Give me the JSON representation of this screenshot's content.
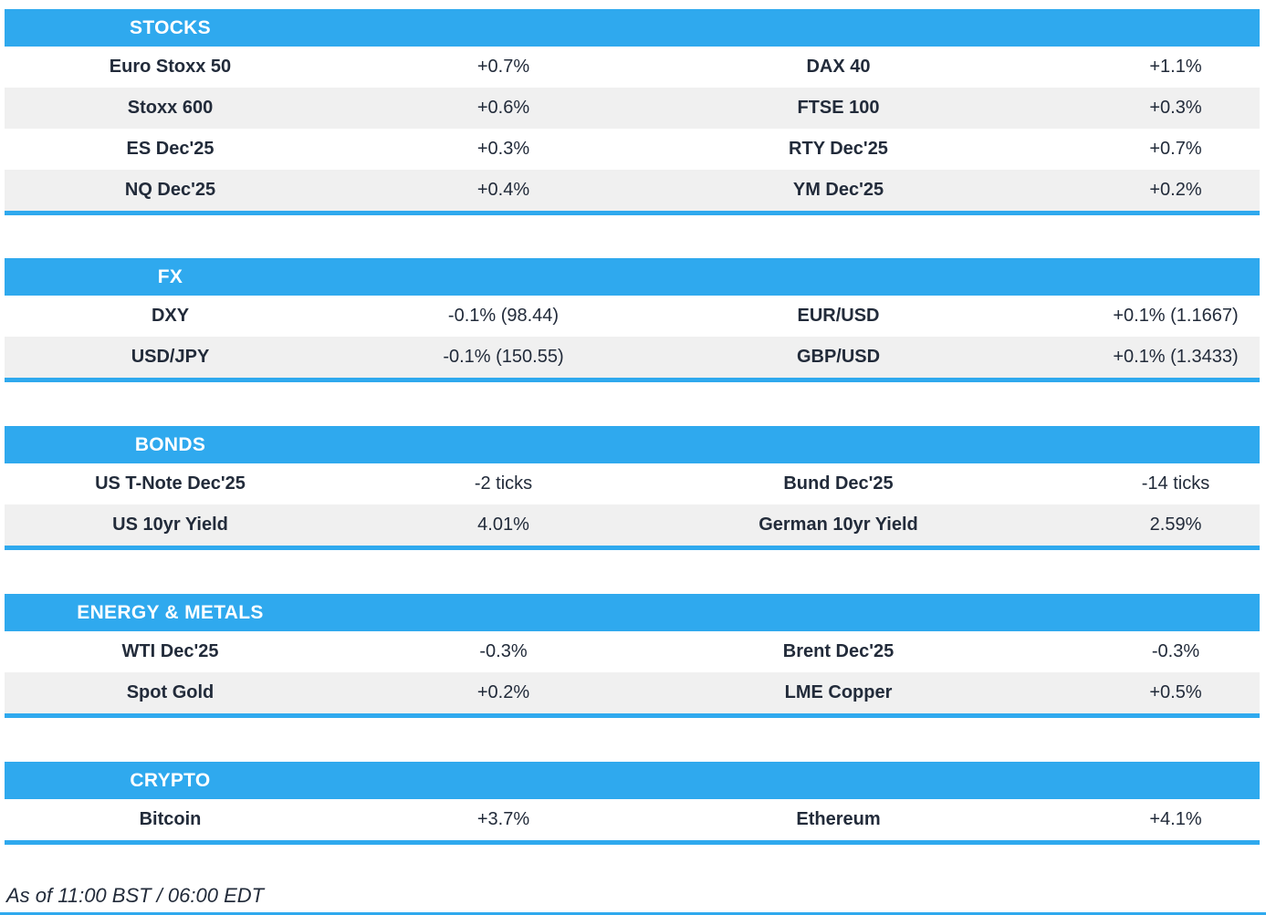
{
  "theme": {
    "accent_blue": "#2FA9EE",
    "row_alt_bg": "#F0F0F0",
    "text_color": "#222B3A",
    "header_text_color": "#FFFFFF"
  },
  "chart_data": {
    "type": "table",
    "sections": [
      {
        "title": "STOCKS",
        "rows": [
          [
            "Euro Stoxx 50",
            "+0.7%",
            "DAX 40",
            "+1.1%"
          ],
          [
            "Stoxx 600",
            "+0.6%",
            "FTSE 100",
            "+0.3%"
          ],
          [
            "ES Dec'25",
            "+0.3%",
            "RTY Dec'25",
            "+0.7%"
          ],
          [
            "NQ Dec'25",
            "+0.4%",
            "YM Dec'25",
            "+0.2%"
          ]
        ]
      },
      {
        "title": "FX",
        "rows": [
          [
            "DXY",
            "-0.1% (98.44)",
            "EUR/USD",
            "+0.1% (1.1667)"
          ],
          [
            "USD/JPY",
            "-0.1% (150.55)",
            "GBP/USD",
            "+0.1% (1.3433)"
          ]
        ]
      },
      {
        "title": "BONDS",
        "rows": [
          [
            "US T-Note Dec'25",
            "-2 ticks",
            "Bund Dec'25",
            "-14 ticks"
          ],
          [
            "US 10yr Yield",
            "4.01%",
            "German 10yr Yield",
            "2.59%"
          ]
        ]
      },
      {
        "title": "ENERGY & METALS",
        "rows": [
          [
            "WTI Dec'25",
            "-0.3%",
            "Brent Dec'25",
            "-0.3%"
          ],
          [
            "Spot Gold",
            "+0.2%",
            "LME Copper",
            "+0.5%"
          ]
        ]
      },
      {
        "title": "CRYPTO",
        "rows": [
          [
            "Bitcoin",
            "+3.7%",
            "Ethereum",
            "+4.1%"
          ]
        ]
      }
    ],
    "footer": "As of 11:00 BST / 06:00 EDT"
  }
}
